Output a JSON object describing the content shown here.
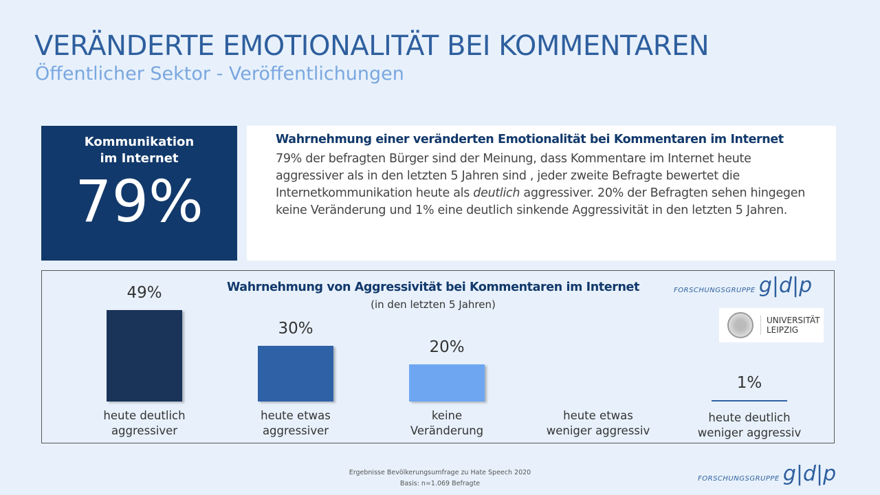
{
  "header": {
    "title": "VERÄNDERTE EMOTIONALITÄT BEI KOMMENTAREN",
    "subtitle": "Öffentlicher Sektor - Veröffentlichungen"
  },
  "kpi": {
    "label": "Kommunikation im Internet",
    "value": "79%"
  },
  "summary": {
    "heading": "Wahrnehmung einer veränderten Emotionalität bei Kommentaren im Internet",
    "text_before": "79% der befragten Bürger sind der Meinung, dass Kommentare im Internet heute aggressiver als in den letzten 5 Jahren sind , jeder zweite Befragte bewertet die Internetkommunikation heute als ",
    "emphasis": "deutlich",
    "text_after": " aggressiver. 20% der Befragten sehen hingegen keine Veränderung und 1% eine deutlich sinkende Aggressivität in den letzten 5 Jahren."
  },
  "chart_data": {
    "type": "bar",
    "title": "Wahrnehmung von Aggressivität bei Kommentaren im Internet",
    "subtitle": "(in den letzten 5 Jahren)",
    "categories": [
      "heute deutlich\naggressiver",
      "heute etwas\naggressiver",
      "keine\nVeränderung",
      "heute etwas\nweniger aggressiv",
      "heute deutlich\nweniger aggressiv"
    ],
    "values": [
      49,
      30,
      20,
      0,
      1
    ],
    "labels": [
      "49%",
      "30%",
      "20%",
      "",
      "1%"
    ],
    "colors": [
      "#1a3358",
      "#2f61a6",
      "#6ea6f2",
      "#2f61a6",
      "#2f61a6"
    ],
    "ylim": [
      0,
      50
    ]
  },
  "logos": {
    "gdp_small": "FORSCHUNGSGRUPPE",
    "gdp_large": "g|d|p",
    "leipzig": "UNIVERSITÄT LEIPZIG"
  },
  "footer": {
    "line1": "Ergebnisse Bevölkerungsumfrage zu Hate Speech 2020",
    "line2": "Basis: n=1.069 Befragte"
  }
}
